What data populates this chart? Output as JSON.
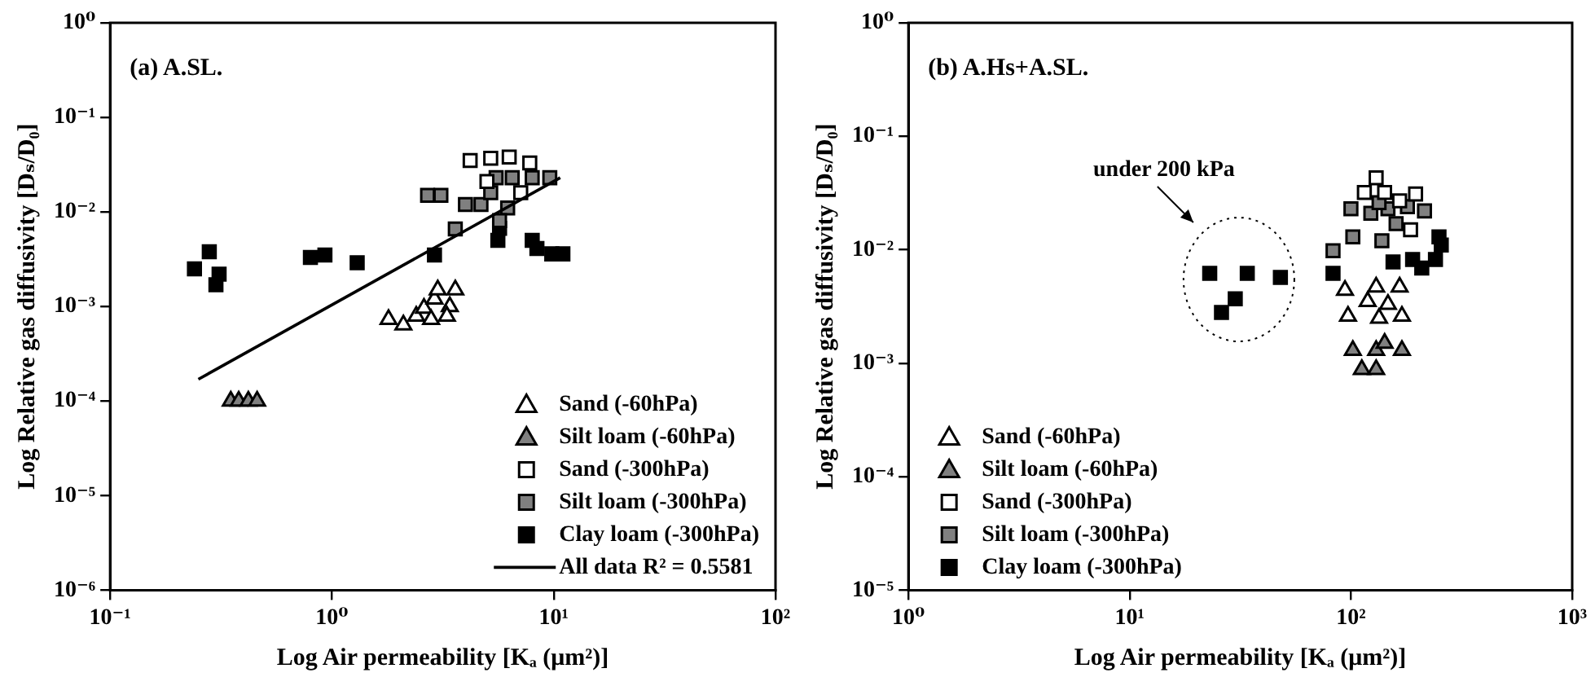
{
  "chart_data": [
    {
      "type": "scatter",
      "title": "(a) A.SL.",
      "xlabel": "Log Air permeability [Kₐ (μm²)]",
      "ylabel": "Log Relative gas diffusivity [Dₛ/D₀]",
      "log": "xy",
      "xlim": [
        0.1,
        100
      ],
      "ylim": [
        1e-06,
        1
      ],
      "xticks": [
        {
          "value": 0.1,
          "label": "10⁻¹"
        },
        {
          "value": 1,
          "label": "10⁰"
        },
        {
          "value": 10,
          "label": "10¹"
        },
        {
          "value": 100,
          "label": "10²"
        }
      ],
      "yticks": [
        {
          "value": 1e-06,
          "label": "10⁻⁶"
        },
        {
          "value": 1e-05,
          "label": "10⁻⁵"
        },
        {
          "value": 0.0001,
          "label": "10⁻⁴"
        },
        {
          "value": 0.001,
          "label": "10⁻³"
        },
        {
          "value": 0.01,
          "label": "10⁻²"
        },
        {
          "value": 0.1,
          "label": "10⁻¹"
        },
        {
          "value": 1,
          "label": "10⁰"
        }
      ],
      "grid": false,
      "legend": "bottom right",
      "series": [
        {
          "name": "Sand (-60hPa)",
          "color": "#ffffff",
          "marker": "triangle",
          "x": [
            1.8,
            2.1,
            2.4,
            2.6,
            2.9,
            3.0,
            3.6,
            3.4,
            3.3,
            2.8
          ],
          "values": [
            0.00073,
            0.00064,
            0.00079,
            0.00096,
            0.0012,
            0.0015,
            0.0015,
            0.001,
            0.00079,
            0.00073
          ]
        },
        {
          "name": "Silt loam (-60hPa)",
          "color": "#808080",
          "marker": "triangle",
          "x": [
            0.35,
            0.38,
            0.42,
            0.46
          ],
          "values": [
            0.0001,
            0.0001,
            0.0001,
            0.0001
          ]
        },
        {
          "name": "Sand (-300hPa)",
          "color": "#ffffff",
          "marker": "square",
          "x": [
            4.2,
            5.2,
            6.3,
            7.8,
            7.1,
            5.0
          ],
          "values": [
            0.035,
            0.037,
            0.038,
            0.033,
            0.016,
            0.021
          ]
        },
        {
          "name": "Silt loam (-300hPa)",
          "color": "#808080",
          "marker": "square",
          "x": [
            2.7,
            3.1,
            4.0,
            4.7,
            3.6,
            5.5,
            6.5,
            8.0,
            9.6,
            5.2,
            6.2,
            5.7
          ],
          "values": [
            0.015,
            0.015,
            0.012,
            0.012,
            0.0066,
            0.023,
            0.023,
            0.023,
            0.023,
            0.016,
            0.011,
            0.0081
          ]
        },
        {
          "name": "Clay loam (-300hPa)",
          "color": "#000000",
          "marker": "square",
          "x": [
            0.24,
            0.28,
            0.31,
            0.3,
            0.8,
            0.93,
            1.3,
            2.9,
            5.6,
            5.7,
            8.0,
            8.4,
            9.8,
            11
          ],
          "values": [
            0.0025,
            0.0038,
            0.0022,
            0.0017,
            0.0033,
            0.0035,
            0.0029,
            0.0035,
            0.005,
            0.0067,
            0.005,
            0.0041,
            0.0036,
            0.0036
          ]
        },
        {
          "name": "All data R² = 0.5581",
          "type": "line",
          "color": "#000000",
          "marker": "none",
          "line_style": "solid",
          "x": [
            0.25,
            10.7
          ],
          "values": [
            0.00017,
            0.023
          ]
        }
      ]
    },
    {
      "type": "scatter",
      "title": "(b) A.Hs+A.SL.",
      "xlabel": "Log Air permeability [Kₐ (μm²)]",
      "ylabel": "Log Relative gas diffusivity [Dₛ/D₀]",
      "log": "xy",
      "xlim": [
        1,
        1000
      ],
      "ylim": [
        1e-05,
        1
      ],
      "xticks": [
        {
          "value": 1,
          "label": "10⁰"
        },
        {
          "value": 10,
          "label": "10¹"
        },
        {
          "value": 100,
          "label": "10²"
        },
        {
          "value": 1000,
          "label": "10³"
        }
      ],
      "yticks": [
        {
          "value": 1e-05,
          "label": "10⁻⁵"
        },
        {
          "value": 0.0001,
          "label": "10⁻⁴"
        },
        {
          "value": 0.001,
          "label": "10⁻³"
        },
        {
          "value": 0.01,
          "label": "10⁻²"
        },
        {
          "value": 0.1,
          "label": "10⁻¹"
        },
        {
          "value": 1,
          "label": "10⁰"
        }
      ],
      "grid": false,
      "legend": "bottom left",
      "annotations": [
        "under 200 kPa"
      ],
      "series": [
        {
          "name": "Sand (-60hPa)",
          "color": "#ffffff",
          "marker": "triangle",
          "x": [
            94,
            130,
            166,
            119,
            97,
            134,
            170,
            147
          ],
          "values": [
            0.0044,
            0.0047,
            0.0047,
            0.0035,
            0.0026,
            0.0025,
            0.0026,
            0.0033
          ]
        },
        {
          "name": "Silt loam (-60hPa)",
          "color": "#808080",
          "marker": "triangle",
          "x": [
            102,
            130,
            170,
            112,
            130,
            142
          ],
          "values": [
            0.0013,
            0.0013,
            0.0013,
            0.00088,
            0.00088,
            0.0015
          ]
        },
        {
          "name": "Sand (-300hPa)",
          "color": "#ffffff",
          "marker": "square",
          "x": [
            130,
            142,
            166,
            196,
            186,
            115
          ],
          "values": [
            0.043,
            0.032,
            0.027,
            0.031,
            0.015,
            0.032
          ]
        },
        {
          "name": "Silt loam (-300hPa)",
          "color": "#808080",
          "marker": "square",
          "x": [
            83,
            102,
            138,
            100,
            123,
            147,
            160,
            215,
            180,
            134
          ],
          "values": [
            0.0098,
            0.013,
            0.012,
            0.023,
            0.021,
            0.023,
            0.017,
            0.022,
            0.024,
            0.026
          ]
        },
        {
          "name": "Clay loam (-300hPa)",
          "color": "#000000",
          "marker": "square",
          "x": [
            23,
            34,
            48,
            30,
            26,
            83,
            174,
            209,
            241,
            256,
            250,
            190,
            155
          ],
          "values": [
            0.0062,
            0.0062,
            0.0057,
            0.0037,
            0.0028,
            0.0062,
            null,
            0.0069,
            0.0082,
            0.011,
            0.013,
            0.0082,
            0.0078
          ]
        }
      ]
    }
  ]
}
